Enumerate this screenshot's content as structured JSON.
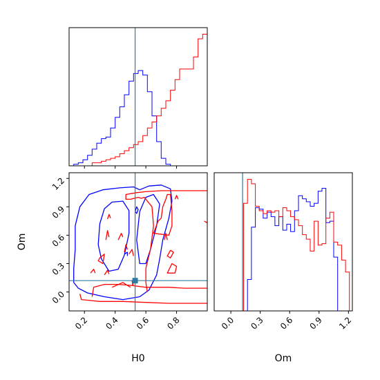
{
  "chart_data": {
    "type": "corner",
    "parameters": [
      "H0",
      "Om"
    ],
    "truth": {
      "H0": 0.53,
      "Om": 0.12
    },
    "colors": {
      "series_a": "#0000ff",
      "series_b": "#ff0000",
      "truth": "#2e7aa0"
    },
    "panels": [
      {
        "id": "H0-marginal",
        "type": "histogram",
        "xlim": [
          0.1,
          1.0
        ],
        "xticks": [
          0.2,
          0.4,
          0.6,
          0.8
        ],
        "tick_labels_shown": false,
        "bins": [
          0.1,
          0.13,
          0.16,
          0.19,
          0.22,
          0.25,
          0.28,
          0.31,
          0.34,
          0.37,
          0.4,
          0.43,
          0.46,
          0.49,
          0.52,
          0.55,
          0.58,
          0.61,
          0.64,
          0.67,
          0.7,
          0.73,
          0.76,
          0.79,
          0.82,
          0.85,
          0.88,
          0.91,
          0.94,
          0.97,
          1.0
        ],
        "series": [
          {
            "color": "#0000ff",
            "values": [
              0,
              1,
              2,
              4,
              7,
              11,
              15,
              18,
              19,
              25,
              32,
              39,
              47,
              56,
              61,
              63,
              60,
              49,
              33,
              16,
              5,
              1,
              0,
              0,
              0,
              0,
              0,
              0,
              0,
              0
            ]
          },
          {
            "color": "#ff0000",
            "values": [
              0,
              0,
              0,
              0,
              0,
              2,
              2,
              3,
              4,
              5,
              6,
              8,
              10,
              12,
              14,
              16,
              20,
              25,
              29,
              33,
              38,
              43,
              50,
              57,
              64,
              64,
              64,
              72,
              84,
              87
            ]
          }
        ]
      },
      {
        "id": "Om-marginal",
        "type": "histogram",
        "xlim": [
          -0.17,
          1.24
        ],
        "xticks": [
          0.0,
          0.3,
          0.6,
          0.9,
          1.2
        ],
        "xtick_labels": [
          "0.0",
          "0.3",
          "0.6",
          "0.9",
          "1.2"
        ],
        "xlabel": "Om",
        "bins": [
          -0.03,
          0.01,
          0.05,
          0.09,
          0.13,
          0.17,
          0.21,
          0.25,
          0.29,
          0.33,
          0.37,
          0.41,
          0.45,
          0.49,
          0.53,
          0.57,
          0.61,
          0.65,
          0.69,
          0.73,
          0.77,
          0.81,
          0.85,
          0.89,
          0.93,
          0.97,
          1.01,
          1.05,
          1.09,
          1.13,
          1.17,
          1.21
        ],
        "series": [
          {
            "color": "#0000ff",
            "values": [
              0,
              0,
              0,
              0,
              0,
              21,
              56,
              69,
              68,
              62,
              66,
              63,
              57,
              63,
              54,
              58,
              53,
              67,
              77,
              75,
              73,
              70,
              72,
              80,
              82,
              59,
              60,
              36,
              0,
              0,
              0
            ]
          },
          {
            "color": "#ff0000",
            "values": [
              0,
              0,
              0,
              0,
              72,
              88,
              85,
              70,
              67,
              65,
              67,
              66,
              67,
              63,
              69,
              67,
              63,
              61,
              57,
              51,
              48,
              40,
              60,
              44,
              45,
              62,
              66,
              46,
              44,
              34,
              26
            ]
          }
        ]
      },
      {
        "id": "H0-Om-joint",
        "type": "contour",
        "xlim": [
          0.1,
          1.0
        ],
        "ylim": [
          -0.2,
          1.26
        ],
        "xticks": [
          0.2,
          0.4,
          0.6,
          0.8
        ],
        "xtick_labels": [
          "0.2",
          "0.4",
          "0.6",
          "0.8"
        ],
        "yticks": [
          0.0,
          0.3,
          0.6,
          0.9,
          1.2
        ],
        "ytick_labels": [
          "0.0",
          "0.3",
          "0.6",
          "0.9",
          "1.2"
        ],
        "xlabel": "H0",
        "ylabel": "Om",
        "contours": [
          {
            "color": "#0000ff",
            "points": [
              [
                0.16,
                0.04
              ],
              [
                0.13,
                0.1
              ],
              [
                0.13,
                0.25
              ],
              [
                0.14,
                0.45
              ],
              [
                0.14,
                0.7
              ],
              [
                0.17,
                0.9
              ],
              [
                0.23,
                1.03
              ],
              [
                0.32,
                1.08
              ],
              [
                0.43,
                1.1
              ],
              [
                0.52,
                1.11
              ],
              [
                0.56,
                1.08
              ],
              [
                0.62,
                1.12
              ],
              [
                0.7,
                1.13
              ],
              [
                0.76,
                1.09
              ],
              [
                0.77,
                0.96
              ],
              [
                0.75,
                0.78
              ],
              [
                0.71,
                0.55
              ],
              [
                0.69,
                0.35
              ],
              [
                0.67,
                0.18
              ],
              [
                0.62,
                0.02
              ],
              [
                0.56,
                -0.05
              ],
              [
                0.45,
                -0.08
              ],
              [
                0.33,
                -0.05
              ],
              [
                0.22,
                -0.01
              ]
            ]
          },
          {
            "color": "#0000ff",
            "points": [
              [
                0.31,
                0.35
              ],
              [
                0.29,
                0.5
              ],
              [
                0.3,
                0.72
              ],
              [
                0.33,
                0.88
              ],
              [
                0.38,
                0.95
              ],
              [
                0.45,
                0.96
              ],
              [
                0.49,
                0.86
              ],
              [
                0.49,
                0.62
              ],
              [
                0.46,
                0.39
              ],
              [
                0.42,
                0.24
              ],
              [
                0.36,
                0.22
              ]
            ]
          },
          {
            "color": "#0000ff",
            "points": [
              [
                0.56,
                0.3
              ],
              [
                0.54,
                0.55
              ],
              [
                0.56,
                0.85
              ],
              [
                0.6,
                1.0
              ],
              [
                0.65,
                1.03
              ],
              [
                0.69,
                0.93
              ],
              [
                0.67,
                0.7
              ],
              [
                0.63,
                0.45
              ],
              [
                0.6,
                0.3
              ]
            ]
          },
          {
            "color": "#0000ff",
            "points": [
              [
                0.53,
                0.85
              ],
              [
                0.54,
                0.9
              ],
              [
                0.55,
                0.87
              ],
              [
                0.54,
                0.83
              ]
            ]
          },
          {
            "color": "#0000ff",
            "points": [
              [
                0.46,
                0.4
              ],
              [
                0.48,
                0.42
              ],
              [
                0.48,
                0.38
              ]
            ]
          },
          {
            "color": "#ff0000",
            "points": [
              [
                0.34,
                0.55
              ],
              [
                0.35,
                0.65
              ],
              [
                0.36,
                0.58
              ]
            ]
          },
          {
            "color": "#ff0000",
            "points": [
              [
                0.35,
                0.77
              ],
              [
                0.36,
                0.82
              ],
              [
                0.37,
                0.78
              ]
            ]
          },
          {
            "color": "#ff0000",
            "points": [
              [
                0.46,
                0.42
              ],
              [
                0.47,
                0.5
              ],
              [
                0.48,
                0.45
              ]
            ]
          },
          {
            "color": "#ff0000",
            "points": [
              [
                0.3,
                0.36
              ],
              [
                0.33,
                0.4
              ],
              [
                0.32,
                0.3
              ],
              [
                0.29,
                0.33
              ]
            ]
          },
          {
            "color": "#ff0000",
            "points": [
              [
                0.33,
                0.18
              ],
              [
                0.35,
                0.23
              ],
              [
                0.36,
                0.19
              ]
            ]
          },
          {
            "color": "#ff0000",
            "points": [
              [
                0.24,
                0.2
              ],
              [
                0.26,
                0.24
              ],
              [
                0.27,
                0.2
              ]
            ]
          },
          {
            "color": "#ff0000",
            "points": [
              [
                0.42,
                0.55
              ],
              [
                0.44,
                0.62
              ],
              [
                0.45,
                0.58
              ]
            ]
          },
          {
            "color": "#ff0000",
            "points": [
              [
                0.49,
                0.4
              ],
              [
                0.51,
                0.45
              ],
              [
                0.52,
                0.38
              ]
            ]
          },
          {
            "color": "#ff0000",
            "points": [
              [
                0.61,
                0.0
              ],
              [
                0.6,
                0.1
              ],
              [
                0.6,
                0.25
              ],
              [
                0.63,
                0.45
              ],
              [
                0.65,
                0.7
              ],
              [
                0.64,
                0.9
              ],
              [
                0.59,
                1.0
              ],
              [
                0.57,
                0.99
              ],
              [
                0.55,
                1.0
              ],
              [
                0.5,
                0.98
              ],
              [
                0.47,
                0.98
              ],
              [
                0.47,
                1.03
              ],
              [
                0.54,
                1.05
              ],
              [
                0.6,
                1.06
              ],
              [
                0.7,
                1.07
              ],
              [
                0.85,
                1.07
              ],
              [
                1.0,
                1.07
              ]
            ]
          },
          {
            "color": "#ff0000",
            "points": [
              [
                0.25,
                -0.05
              ],
              [
                0.26,
                0.05
              ],
              [
                0.33,
                0.08
              ],
              [
                0.42,
                0.08
              ],
              [
                0.5,
                0.07
              ],
              [
                0.6,
                0.05
              ],
              [
                0.75,
                0.05
              ],
              [
                0.85,
                0.04
              ],
              [
                1.0,
                0.04
              ]
            ]
          },
          {
            "color": "#ff0000",
            "points": [
              [
                0.17,
                -0.02
              ],
              [
                0.18,
                -0.08
              ],
              [
                0.3,
                -0.1
              ],
              [
                0.45,
                -0.1
              ],
              [
                0.6,
                -0.11
              ],
              [
                0.75,
                -0.12
              ],
              [
                0.9,
                -0.12
              ],
              [
                1.0,
                -0.12
              ]
            ]
          },
          {
            "color": "#ff0000",
            "points": [
              [
                0.38,
                0.05
              ],
              [
                0.45,
                0.1
              ],
              [
                0.5,
                0.05
              ]
            ]
          },
          {
            "color": "#ff0000",
            "points": [
              [
                0.74,
                0.2
              ],
              [
                0.77,
                0.3
              ],
              [
                0.8,
                0.27
              ],
              [
                0.79,
                0.2
              ]
            ]
          },
          {
            "color": "#ff0000",
            "points": [
              [
                0.72,
                0.55
              ],
              [
                0.73,
                0.62
              ],
              [
                0.74,
                0.55
              ]
            ]
          },
          {
            "color": "#ff0000",
            "points": [
              [
                0.74,
                0.38
              ],
              [
                0.76,
                0.44
              ],
              [
                0.78,
                0.42
              ],
              [
                0.76,
                0.36
              ]
            ]
          },
          {
            "color": "#ff0000",
            "points": [
              [
                0.65,
                0.62
              ],
              [
                0.68,
                0.75
              ],
              [
                0.7,
                0.78
              ],
              [
                0.71,
                0.9
              ],
              [
                0.73,
                0.98
              ],
              [
                0.74,
                1.03
              ],
              [
                0.76,
                1.03
              ],
              [
                0.77,
                0.85
              ],
              [
                0.77,
                0.7
              ],
              [
                0.75,
                0.6
              ]
            ]
          },
          {
            "color": "#ff0000",
            "points": [
              [
                0.79,
                0.98
              ],
              [
                0.8,
                1.02
              ],
              [
                0.81,
                0.98
              ]
            ]
          },
          {
            "color": "#ff0000",
            "points": [
              [
                0.98,
                0.75
              ],
              [
                1.0,
                0.73
              ],
              [
                1.0,
                0.75
              ]
            ]
          },
          {
            "color": "#ff0000",
            "points": [
              [
                0.51,
                0.12
              ],
              [
                0.515,
                0.07
              ],
              [
                0.52,
                0.12
              ]
            ]
          }
        ]
      }
    ]
  }
}
